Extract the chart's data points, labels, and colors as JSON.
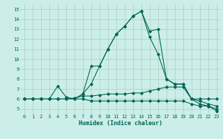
{
  "xlabel": "Humidex (Indice chaleur)",
  "xlim": [
    -0.5,
    23.5
  ],
  "ylim": [
    4.5,
    15.5
  ],
  "xticks": [
    0,
    1,
    2,
    3,
    4,
    5,
    6,
    7,
    8,
    9,
    10,
    11,
    12,
    13,
    14,
    15,
    16,
    17,
    18,
    19,
    20,
    21,
    22,
    23
  ],
  "yticks": [
    5,
    6,
    7,
    8,
    9,
    10,
    11,
    12,
    13,
    14,
    15
  ],
  "bg_color": "#cceee8",
  "line_color": "#006655",
  "grid_color": "#aaccbb",
  "curve_main": [
    6.0,
    6.0,
    6.0,
    6.0,
    6.0,
    6.0,
    6.0,
    6.5,
    9.3,
    9.3,
    11.0,
    12.5,
    13.3,
    14.3,
    14.8,
    12.2,
    10.5,
    8.0,
    7.5,
    7.5,
    6.0,
    5.5,
    5.3,
    4.8
  ],
  "curve_triangle": [
    6.0,
    6.0,
    6.0,
    6.0,
    7.3,
    6.2,
    6.0,
    6.5,
    7.5,
    9.3,
    11.0,
    12.5,
    13.3,
    14.3,
    14.8,
    12.8,
    13.0,
    8.0,
    7.5,
    7.5,
    6.0,
    5.8,
    5.5,
    5.3
  ],
  "curve_mid_upper": [
    6.0,
    6.0,
    6.0,
    6.0,
    6.0,
    6.0,
    6.1,
    6.3,
    6.3,
    6.4,
    6.5,
    6.5,
    6.5,
    6.6,
    6.6,
    6.8,
    7.0,
    7.2,
    7.2,
    7.2,
    6.0,
    6.0,
    6.0,
    6.0
  ],
  "curve_lower": [
    6.0,
    6.0,
    6.0,
    6.0,
    6.0,
    6.0,
    6.0,
    6.0,
    5.8,
    5.8,
    5.8,
    5.8,
    5.8,
    5.8,
    5.8,
    5.8,
    5.8,
    5.8,
    5.8,
    5.8,
    5.5,
    5.3,
    5.3,
    5.0
  ]
}
